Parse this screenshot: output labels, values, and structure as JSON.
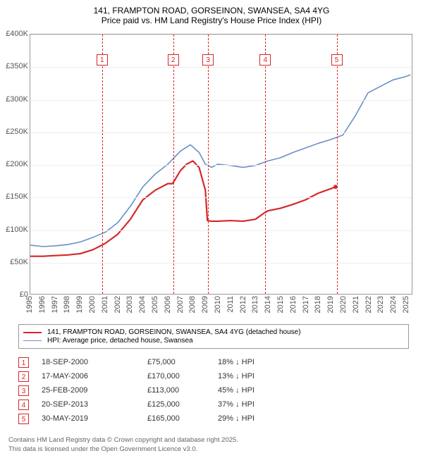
{
  "title_line1": "141, FRAMPTON ROAD, GORSEINON, SWANSEA, SA4 4YG",
  "title_line2": "Price paid vs. HM Land Registry's House Price Index (HPI)",
  "chart": {
    "type": "line",
    "background_color": "#ffffff",
    "grid_color": "#eeeeee",
    "border_color": "#999999",
    "ylim": [
      0,
      400000
    ],
    "ytick_step": 50000,
    "yticks": [
      "£0",
      "£50K",
      "£100K",
      "£150K",
      "£200K",
      "£250K",
      "£300K",
      "£350K",
      "£400K"
    ],
    "xlim": [
      1995,
      2025.5
    ],
    "xticks": [
      "1995",
      "1996",
      "1997",
      "1998",
      "1999",
      "2000",
      "2001",
      "2002",
      "2003",
      "2004",
      "2005",
      "2006",
      "2007",
      "2008",
      "2009",
      "2010",
      "2011",
      "2012",
      "2013",
      "2014",
      "2015",
      "2016",
      "2017",
      "2018",
      "2019",
      "2020",
      "2021",
      "2022",
      "2023",
      "2024",
      "2025"
    ],
    "series": [
      {
        "name": "property",
        "label": "141, FRAMPTON ROAD, GORSEINON, SWANSEA, SA4 4YG (detached house)",
        "color": "#d62728",
        "width": 2.2,
        "points": [
          [
            1995.0,
            58000
          ],
          [
            1996.0,
            58000
          ],
          [
            1997.0,
            59000
          ],
          [
            1998.0,
            60000
          ],
          [
            1999.0,
            62000
          ],
          [
            2000.0,
            68000
          ],
          [
            2000.72,
            75000
          ],
          [
            2001.0,
            78000
          ],
          [
            2002.0,
            92000
          ],
          [
            2003.0,
            115000
          ],
          [
            2004.0,
            145000
          ],
          [
            2005.0,
            160000
          ],
          [
            2006.0,
            170000
          ],
          [
            2006.38,
            170000
          ],
          [
            2007.0,
            190000
          ],
          [
            2007.5,
            200000
          ],
          [
            2008.0,
            205000
          ],
          [
            2008.5,
            195000
          ],
          [
            2009.0,
            160000
          ],
          [
            2009.16,
            113000
          ],
          [
            2009.5,
            112000
          ],
          [
            2010.0,
            112000
          ],
          [
            2011.0,
            113000
          ],
          [
            2012.0,
            112000
          ],
          [
            2013.0,
            115000
          ],
          [
            2013.72,
            125000
          ],
          [
            2014.0,
            128000
          ],
          [
            2015.0,
            132000
          ],
          [
            2016.0,
            138000
          ],
          [
            2017.0,
            145000
          ],
          [
            2018.0,
            155000
          ],
          [
            2019.0,
            162000
          ],
          [
            2019.41,
            165000
          ]
        ]
      },
      {
        "name": "hpi",
        "label": "HPI: Average price, detached house, Swansea",
        "color": "#6a8fc7",
        "width": 1.6,
        "points": [
          [
            1995.0,
            75000
          ],
          [
            1996.0,
            73000
          ],
          [
            1997.0,
            74000
          ],
          [
            1998.0,
            76000
          ],
          [
            1999.0,
            80000
          ],
          [
            2000.0,
            87000
          ],
          [
            2001.0,
            95000
          ],
          [
            2002.0,
            110000
          ],
          [
            2003.0,
            135000
          ],
          [
            2004.0,
            165000
          ],
          [
            2005.0,
            185000
          ],
          [
            2006.0,
            200000
          ],
          [
            2007.0,
            220000
          ],
          [
            2007.8,
            230000
          ],
          [
            2008.5,
            218000
          ],
          [
            2009.0,
            200000
          ],
          [
            2009.5,
            195000
          ],
          [
            2010.0,
            200000
          ],
          [
            2011.0,
            198000
          ],
          [
            2012.0,
            195000
          ],
          [
            2013.0,
            198000
          ],
          [
            2014.0,
            205000
          ],
          [
            2015.0,
            210000
          ],
          [
            2016.0,
            218000
          ],
          [
            2017.0,
            225000
          ],
          [
            2018.0,
            232000
          ],
          [
            2019.0,
            238000
          ],
          [
            2020.0,
            245000
          ],
          [
            2021.0,
            275000
          ],
          [
            2022.0,
            310000
          ],
          [
            2023.0,
            320000
          ],
          [
            2024.0,
            330000
          ],
          [
            2025.0,
            335000
          ],
          [
            2025.4,
            338000
          ]
        ]
      }
    ],
    "markers": [
      {
        "n": "1",
        "x": 2000.72
      },
      {
        "n": "2",
        "x": 2006.38
      },
      {
        "n": "3",
        "x": 2009.16
      },
      {
        "n": "4",
        "x": 2013.72
      },
      {
        "n": "5",
        "x": 2019.41
      }
    ]
  },
  "legend": {
    "items": [
      {
        "color": "#d62728",
        "width": 2.2,
        "label": "141, FRAMPTON ROAD, GORSEINON, SWANSEA, SA4 4YG (detached house)"
      },
      {
        "color": "#6a8fc7",
        "width": 1.6,
        "label": "HPI: Average price, detached house, Swansea"
      }
    ]
  },
  "sales": [
    {
      "n": "1",
      "date": "18-SEP-2000",
      "price": "£75,000",
      "hpi": "18% ↓ HPI"
    },
    {
      "n": "2",
      "date": "17-MAY-2006",
      "price": "£170,000",
      "hpi": "13% ↓ HPI"
    },
    {
      "n": "3",
      "date": "25-FEB-2009",
      "price": "£113,000",
      "hpi": "45% ↓ HPI"
    },
    {
      "n": "4",
      "date": "20-SEP-2013",
      "price": "£125,000",
      "hpi": "37% ↓ HPI"
    },
    {
      "n": "5",
      "date": "30-MAY-2019",
      "price": "£165,000",
      "hpi": "29% ↓ HPI"
    }
  ],
  "footer_line1": "Contains HM Land Registry data © Crown copyright and database right 2025.",
  "footer_line2": "This data is licensed under the Open Government Licence v3.0."
}
